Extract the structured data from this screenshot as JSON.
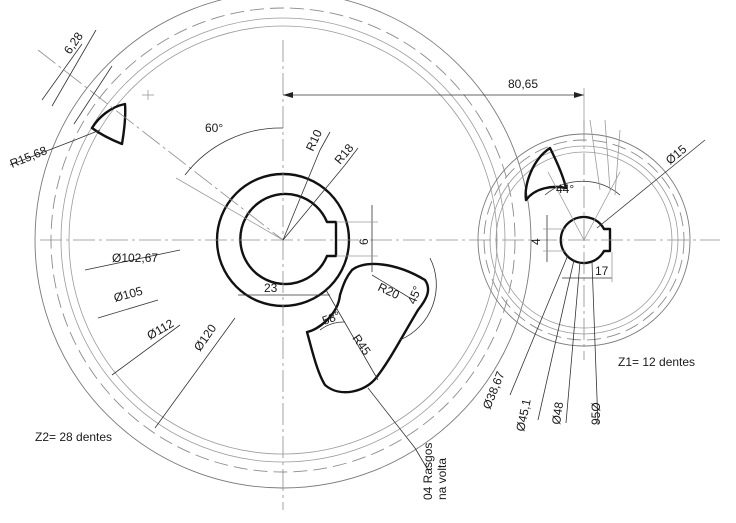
{
  "labels": {
    "d6_28": "6,28",
    "r15_68": "R15,68",
    "a60": "60°",
    "r10": "R10",
    "r18": "R18",
    "d80_65": "80,65",
    "d15": "Ø15",
    "a44": "44°",
    "d4": "4",
    "d6": "6",
    "d17": "17",
    "d102_67": "Ø102,67",
    "d105": "Ø105",
    "d112": "Ø112",
    "d120": "Ø120",
    "d23": "23",
    "r20": "R20",
    "a45": "45°",
    "a58": "58°",
    "r45": "R45",
    "d38_67": "Ø38,67",
    "d45_1": "Ø45,1",
    "d48": "Ø48",
    "d50": "95Ø",
    "z1": "Z1= 12 dentes",
    "z2": "Z2= 28 dentes",
    "rasgos_1": "04 Rasgos",
    "rasgos_2": "na volta"
  }
}
